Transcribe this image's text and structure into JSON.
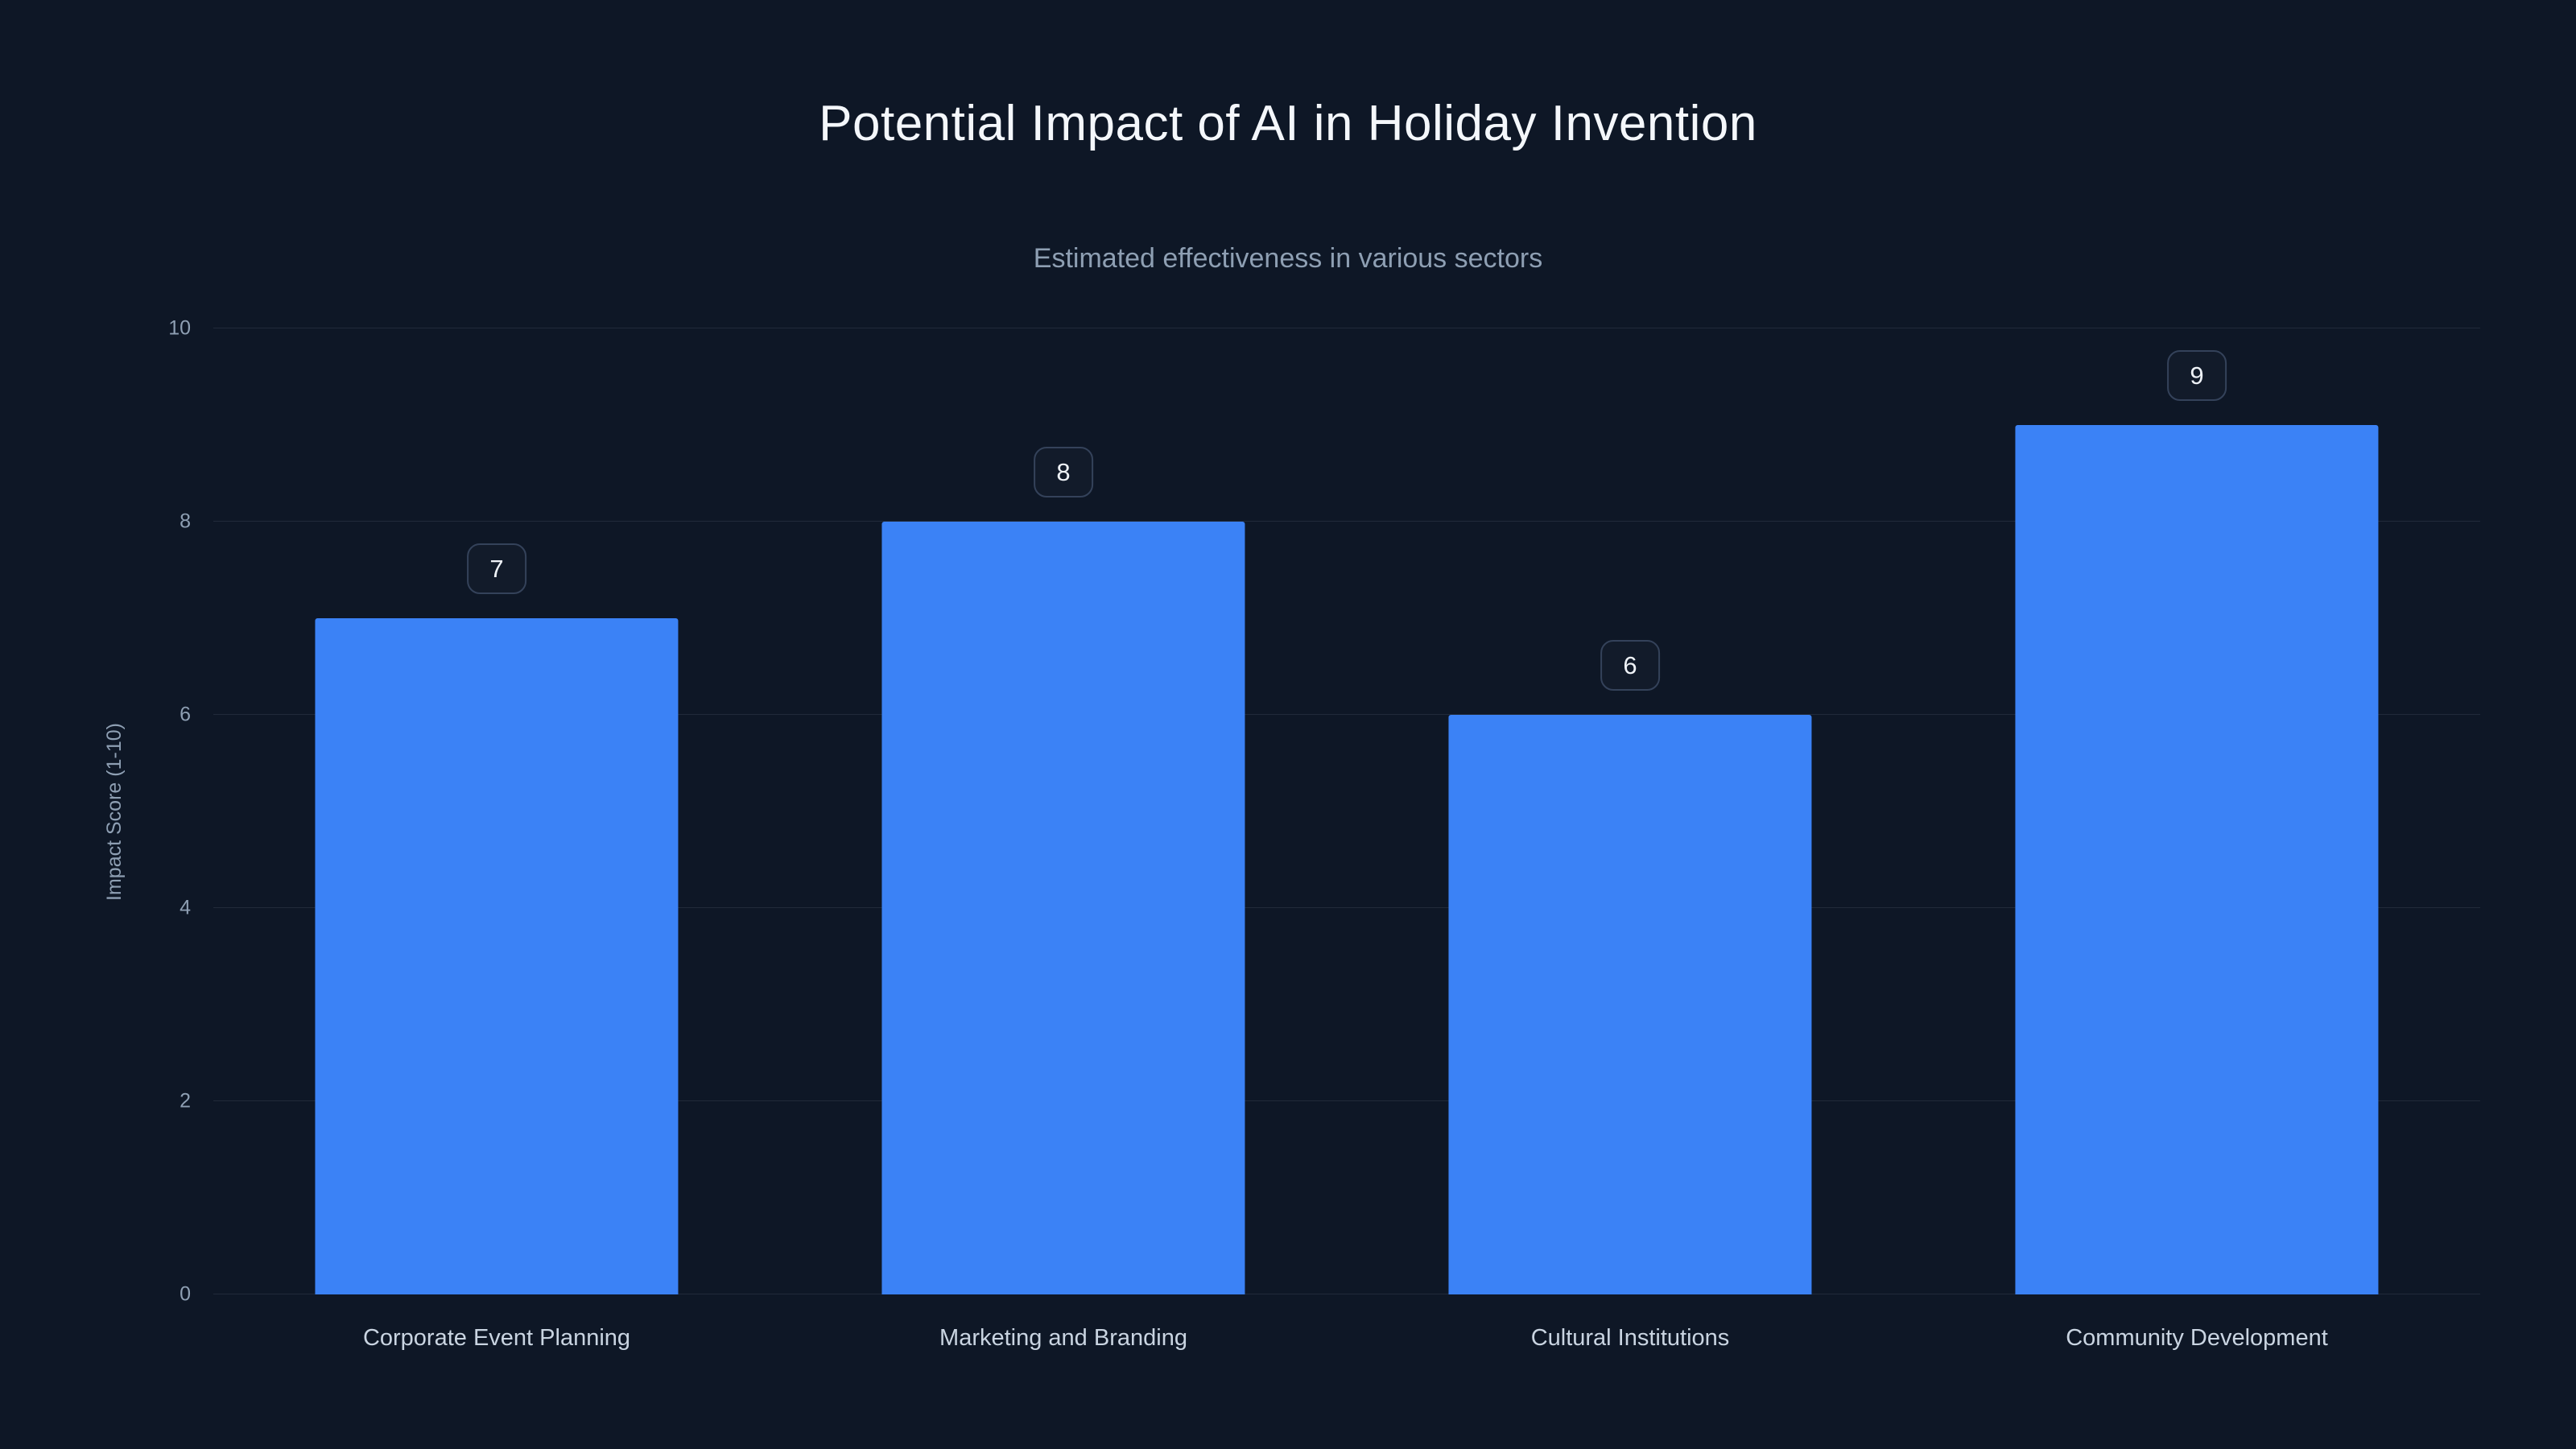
{
  "colors": {
    "background": "#0e1726",
    "bar": "#3b82f6",
    "title": "#f4f7fb",
    "subtitle": "#8e9fb3",
    "gridline": "rgba(148,163,184,0.14)"
  },
  "chart_data": {
    "type": "bar",
    "title": "Potential Impact of AI in Holiday Invention",
    "subtitle": "Estimated effectiveness in various sectors",
    "ylabel": "Impact Score (1-10)",
    "xlabel": "",
    "categories": [
      "Corporate Event Planning",
      "Marketing and Branding",
      "Cultural Institutions",
      "Community Development"
    ],
    "values": [
      7,
      8,
      6,
      9
    ],
    "value_labels": [
      "7",
      "8",
      "6",
      "9"
    ],
    "ylim": [
      0,
      10
    ],
    "yticks": [
      0,
      2,
      4,
      6,
      8,
      10
    ],
    "grid": "horizontal",
    "legend": "none"
  }
}
